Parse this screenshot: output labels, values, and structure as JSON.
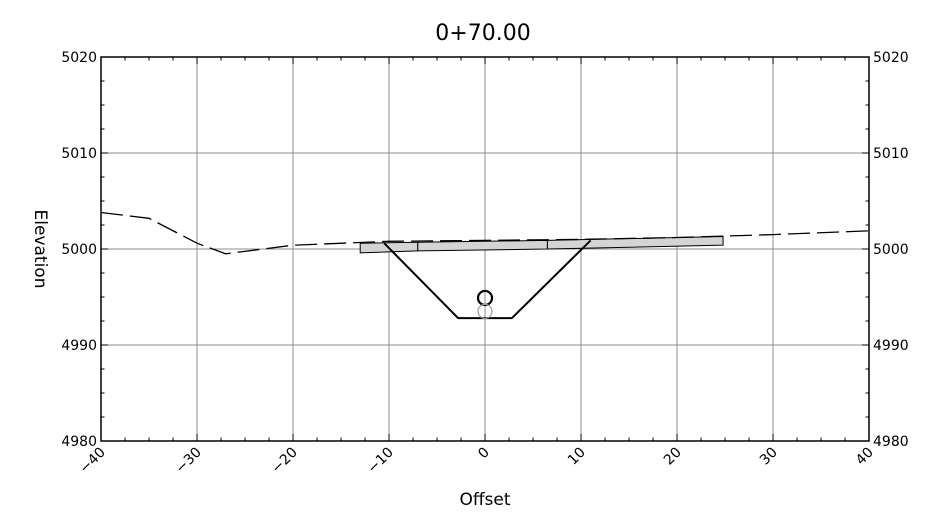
{
  "chart_data": {
    "type": "line",
    "title": "0+70.00",
    "xlabel": "Offset",
    "ylabel": "Elevation",
    "xlim": [
      -40,
      40
    ],
    "ylim": [
      4980,
      5020
    ],
    "x_ticks": [
      -40,
      -30,
      -20,
      -10,
      0,
      10,
      20,
      30,
      40
    ],
    "y_ticks": [
      4980,
      4990,
      5000,
      5010,
      5020
    ],
    "grid": true,
    "series": [
      {
        "kind": "existing-ground-dashed",
        "x": [
          -40,
          -35,
          -30,
          -27,
          -20,
          -10,
          0,
          10,
          20,
          30,
          40
        ],
        "y": [
          5003.8,
          5003.2,
          5000.6,
          4999.5,
          5000.4,
          5000.8,
          5000.9,
          5001.0,
          5001.2,
          5001.5,
          5001.9
        ]
      },
      {
        "kind": "trench-outline",
        "x": [
          -10.5,
          -2.8,
          2.8,
          11.0
        ],
        "y": [
          5000.6,
          4992.8,
          4992.8,
          5000.9
        ]
      }
    ],
    "pavement_strips": [
      {
        "x": [
          -13.0,
          -7.0
        ],
        "y_top": [
          5000.6,
          5000.7
        ],
        "y_bottom": [
          4999.6,
          4999.8
        ]
      },
      {
        "x": [
          -7.0,
          6.5
        ],
        "y_top": [
          5000.7,
          5000.9
        ],
        "y_bottom": [
          4999.8,
          5000.0
        ]
      },
      {
        "x": [
          6.5,
          24.8
        ],
        "y_top": [
          5000.9,
          5001.3
        ],
        "y_bottom": [
          5000.0,
          5000.4
        ]
      }
    ],
    "pipe_markers": [
      {
        "x": 0,
        "y": 4994.9,
        "color": "#000000"
      },
      {
        "x": 0,
        "y": 4993.5,
        "color": "#999999"
      }
    ]
  }
}
